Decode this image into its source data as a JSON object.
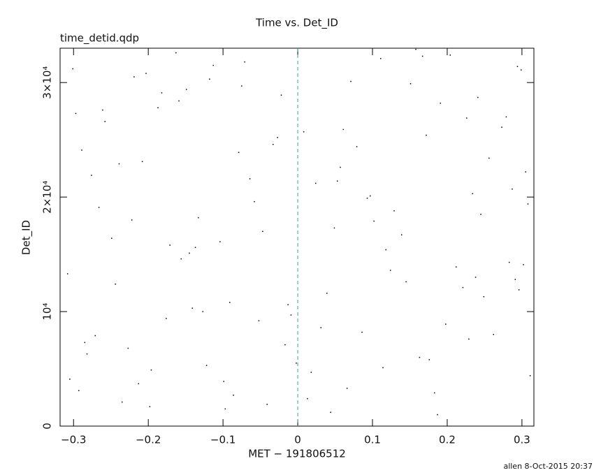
{
  "chart_data": {
    "type": "scatter",
    "title": "Time vs. Det_ID",
    "subtitle": "time_detid.qdp",
    "xlabel": "MET − 191806512",
    "ylabel": "Det_ID",
    "footer": "allen  8-Oct-2015 20:37",
    "xlim": [
      -0.318,
      0.316
    ],
    "ylim": [
      0,
      33000
    ],
    "xticks": [
      {
        "value": -0.3,
        "label": "−0.3"
      },
      {
        "value": -0.2,
        "label": "−0.2"
      },
      {
        "value": -0.1,
        "label": "−0.1"
      },
      0,
      0.1,
      0.2,
      0.3
    ],
    "yticks": [
      0,
      {
        "value": 10000,
        "label": "10⁴"
      },
      {
        "value": 20000,
        "label": "2×10⁴"
      },
      {
        "value": 30000,
        "label": "3×10⁴"
      }
    ],
    "vline": 0,
    "vline_color": "#3a9a9a",
    "color": "#000000",
    "x": [
      -0.301,
      -0.244,
      -0.187,
      -0.122,
      -0.058,
      0.013,
      0.071,
      0.139,
      0.198,
      0.256,
      0.302,
      -0.276,
      -0.213,
      -0.149,
      -0.091,
      -0.027,
      0.044,
      0.102,
      0.167,
      0.229,
      0.287,
      -0.308,
      -0.258,
      -0.196,
      -0.133,
      -0.071,
      -0.009,
      0.057,
      0.118,
      0.183,
      0.241,
      0.296,
      -0.289,
      -0.227,
      -0.163,
      -0.104,
      -0.041,
      0.024,
      0.086,
      0.151,
      0.212,
      0.273,
      0.311,
      -0.266,
      -0.203,
      -0.141,
      -0.079,
      -0.017,
      0.049,
      0.111,
      0.176,
      0.234,
      0.291,
      -0.297,
      -0.235,
      -0.171,
      -0.113,
      -0.052,
      0.008,
      0.066,
      0.129,
      0.191,
      0.249,
      0.305,
      -0.282,
      -0.219,
      -0.156,
      -0.097,
      -0.033,
      0.031,
      0.093,
      0.158,
      0.221,
      0.279,
      -0.305,
      -0.249,
      -0.182,
      -0.127,
      -0.064,
      -0.002,
      0.061,
      0.124,
      0.187,
      0.245,
      0.299,
      -0.271,
      -0.208,
      -0.145,
      -0.086,
      -0.022,
      0.039,
      0.097,
      0.163,
      0.226,
      0.283,
      -0.293,
      -0.239,
      -0.176,
      -0.118,
      -0.047,
      0.018,
      0.079,
      0.145,
      0.204,
      0.262,
      0.308,
      -0.261,
      -0.198,
      -0.137,
      -0.075,
      -0.013,
      0.053,
      0.114,
      0.172,
      0.238,
      0.294,
      -0.285,
      -0.222,
      -0.159,
      -0.099
    ],
    "values": [
      31200,
      12400,
      27800,
      5300,
      19600,
      2400,
      30100,
      16700,
      8900,
      23400,
      14100,
      21900,
      3700,
      29400,
      10800,
      25200,
      1200,
      17900,
      32300,
      7600,
      20700,
      13300,
      26600,
      4900,
      18200,
      31800,
      9700,
      22600,
      15400,
      2900,
      28700,
      11900,
      24100,
      6800,
      32600,
      16100,
      1900,
      21200,
      8200,
      29900,
      13900,
      26100,
      4400,
      19100,
      30800,
      10300,
      23900,
      7100,
      17300,
      32100,
      5800,
      20300,
      12800,
      27300,
      2100,
      15800,
      31500,
      9200,
      25700,
      3300,
      18800,
      28200,
      11300,
      22200,
      6300,
      30500,
      14600,
      1500,
      24600,
      8600,
      19900,
      32900,
      12100,
      27000,
      4100,
      16400,
      29100,
      10000,
      21600,
      5500,
      25900,
      13600,
      1000,
      18500,
      31100,
      7900,
      23100,
      15100,
      2700,
      28900,
      11600,
      20100,
      6000,
      26900,
      14300,
      3100,
      22900,
      9400,
      30300,
      17000,
      4700,
      24400,
      12600,
      32400,
      8000,
      19400,
      27600,
      1700,
      15600,
      29700,
      10600,
      21400,
      5100,
      25400,
      13000,
      31400,
      7300,
      18000,
      28400,
      3900
    ]
  }
}
